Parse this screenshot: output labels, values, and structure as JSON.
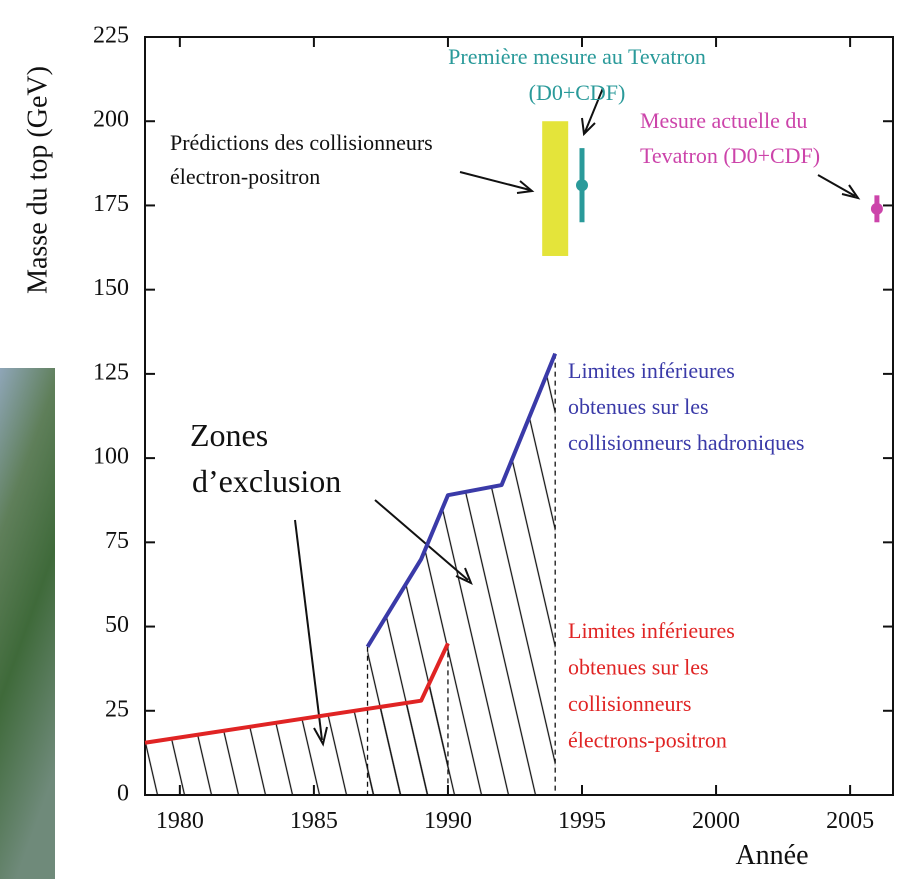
{
  "chart_data": {
    "type": "line",
    "ylabel": "Masse du top (GeV)",
    "xlabel": "Année",
    "xlim": [
      1978.7,
      2006.6
    ],
    "ylim": [
      0,
      225
    ],
    "xticks": [
      1980,
      1985,
      1990,
      1995,
      2000,
      2005
    ],
    "yticks": [
      0,
      25,
      50,
      75,
      100,
      125,
      150,
      175,
      200,
      225
    ],
    "series": [
      {
        "kind": "line",
        "color": "#e02424",
        "x": [
          1978.7,
          1989,
          1990
        ],
        "values": [
          15.5,
          28,
          45
        ]
      },
      {
        "kind": "line",
        "color": "#3a3aa8",
        "x": [
          1987,
          1989,
          1990,
          1992,
          1994
        ],
        "values": [
          44,
          70,
          89,
          92,
          131
        ]
      },
      {
        "kind": "range",
        "color": "#e4e43a",
        "x": [
          1994
        ],
        "low": [
          160
        ],
        "high": [
          200
        ]
      },
      {
        "kind": "errorbar",
        "color": "#2a9a9a",
        "x": [
          1995
        ],
        "values": [
          181
        ],
        "errors": [
          11
        ]
      },
      {
        "kind": "errorbar",
        "color": "#cc44aa",
        "x": [
          2006
        ],
        "values": [
          174
        ],
        "errors": [
          4
        ]
      }
    ],
    "annotations": [
      {
        "color": "#2a9a9a",
        "lines": [
          "Première mesure au Tevatron",
          "(D0+CDF)"
        ]
      },
      {
        "color": "#111111",
        "lines": [
          "Prédictions des collisionneurs",
          "électron-positron"
        ]
      },
      {
        "color": "#cc44aa",
        "lines": [
          "Mesure actuelle du",
          "Tevatron (D0+CDF)"
        ]
      },
      {
        "color": "#3a3aa8",
        "lines": [
          "Limites inférieures",
          "obtenues sur les",
          "collisionneurs hadroniques"
        ]
      },
      {
        "color": "#111111",
        "lines": [
          "Zones",
          "d’exclusion"
        ]
      },
      {
        "color": "#e02424",
        "lines": [
          "Limites inférieures",
          "obtenues sur les",
          "collisionneurs",
          "électrons-positron"
        ]
      }
    ]
  }
}
